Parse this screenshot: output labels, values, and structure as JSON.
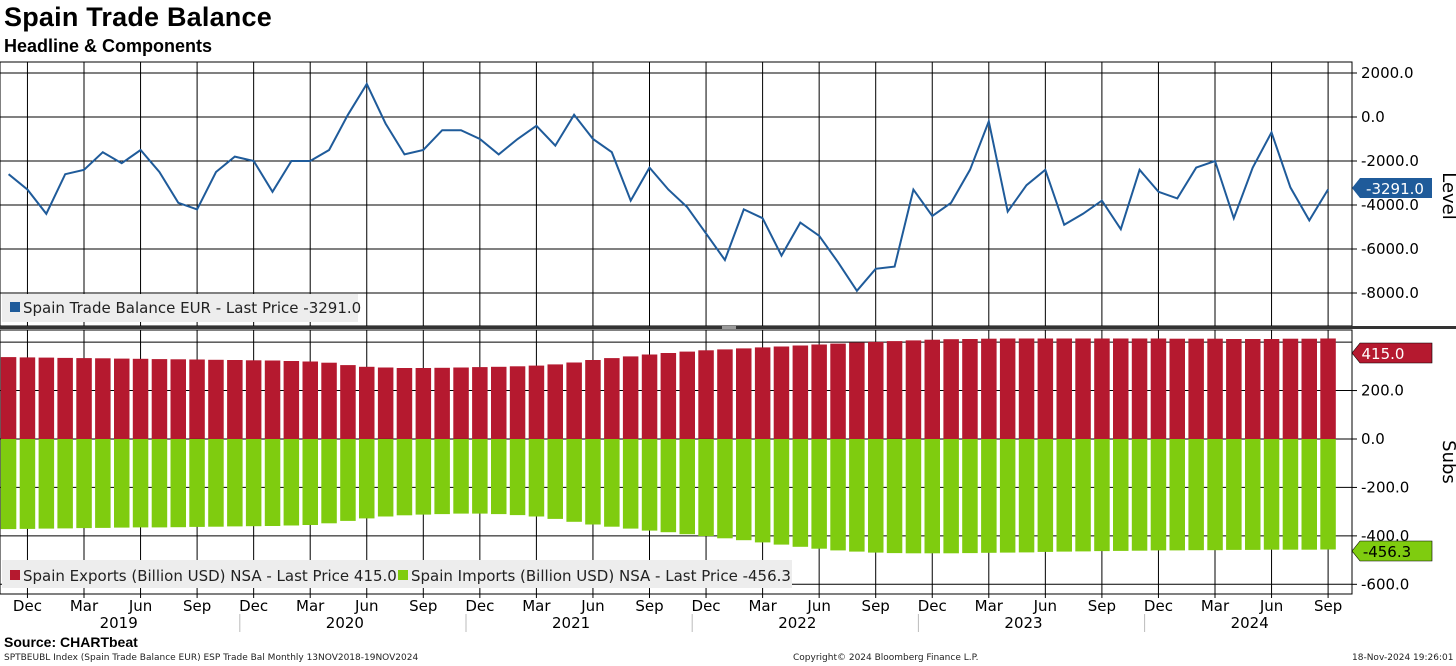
{
  "title": "Spain Trade Balance",
  "subtitle": "Headline & Components",
  "source": "Source: CHARTbeat",
  "footer": {
    "left": "SPTBEUBL Index (Spain Trade Balance EUR) ESP Trade Bal  Monthly 13NOV2018-19NOV2024",
    "center": "Copyright© 2024 Bloomberg Finance L.P.",
    "right": "18-Nov-2024 19:26:01"
  },
  "chart_data": [
    {
      "type": "line",
      "panel": "top",
      "axis_label": "Level",
      "ylim": [
        -9500,
        2500
      ],
      "ticks": [
        2000,
        0,
        -2000,
        -4000,
        -6000,
        -8000
      ],
      "tick_labels": [
        "2000.0",
        "0.0",
        "-2000.0",
        "-4000.0",
        "-6000.0",
        "-8000.0"
      ],
      "color": "#1f5b9a",
      "legend": "Spain Trade Balance EUR - Last Price -3291.0",
      "last_label": "-3291.0",
      "series_name": "Spain Trade Balance EUR",
      "values": [
        -2600,
        -3300,
        -4400,
        -2600,
        -2400,
        -1600,
        -2100,
        -1500,
        -2500,
        -3900,
        -4200,
        -2500,
        -1800,
        -2000,
        -3400,
        -2000,
        -2000,
        -1500,
        100,
        1500,
        -300,
        -1700,
        -1500,
        -600,
        -600,
        -1000,
        -1700,
        -1000,
        -400,
        -1300,
        100,
        -1000,
        -1600,
        -3800,
        -2300,
        -3300,
        -4100,
        -5300,
        -6500,
        -4200,
        -4600,
        -6300,
        -4800,
        -5400,
        -6600,
        -7900,
        -6900,
        -6800,
        -3300,
        -4500,
        -3900,
        -2400,
        -200,
        -4300,
        -3100,
        -2400,
        -4900,
        -4400,
        -3800,
        -5100,
        -2400,
        -3400,
        -3700,
        -2300,
        -2000,
        -4600,
        -2300,
        -700,
        -3200,
        -4700,
        -3291
      ]
    },
    {
      "type": "bar",
      "panel": "bottom",
      "axis_label": "Subs",
      "ylim": [
        -640,
        450
      ],
      "ticks": [
        200,
        0,
        -200,
        -400,
        -600
      ],
      "tick_labels": [
        "200.0",
        "0.0",
        "-200.0",
        "-400.0",
        "-600.0"
      ],
      "series": [
        {
          "name": "Spain Exports (Billion USD) NSA",
          "color": "#b5192f",
          "legend": "Spain Exports (Billion USD) NSA - Last Price 415.0",
          "last_label": "415.0",
          "values": [
            338,
            337,
            336,
            335,
            334,
            333,
            332,
            331,
            330,
            329,
            328,
            327,
            326,
            325,
            324,
            322,
            320,
            315,
            305,
            298,
            295,
            293,
            293,
            294,
            295,
            297,
            298,
            300,
            303,
            308,
            316,
            326,
            334,
            341,
            349,
            355,
            361,
            366,
            370,
            374,
            378,
            382,
            386,
            390,
            394,
            398,
            401,
            404,
            407,
            410,
            412,
            413,
            414,
            415,
            415,
            415,
            415,
            415,
            415,
            415,
            415,
            415,
            414,
            414,
            414,
            413,
            413,
            413,
            414,
            414,
            415
          ]
        },
        {
          "name": "Spain Imports (Billion USD) NSA",
          "color": "#7fcc0f",
          "legend": "Spain Imports (Billion USD) NSA - Last Price -456.3",
          "last_label": "-456.3",
          "values": [
            -372,
            -371,
            -370,
            -369,
            -368,
            -367,
            -366,
            -365,
            -365,
            -364,
            -363,
            -362,
            -361,
            -360,
            -359,
            -357,
            -355,
            -348,
            -338,
            -328,
            -320,
            -315,
            -312,
            -310,
            -308,
            -308,
            -310,
            -314,
            -320,
            -330,
            -342,
            -353,
            -362,
            -370,
            -378,
            -385,
            -393,
            -401,
            -410,
            -418,
            -427,
            -436,
            -445,
            -453,
            -460,
            -465,
            -469,
            -471,
            -472,
            -472,
            -472,
            -471,
            -470,
            -469,
            -468,
            -466,
            -465,
            -464,
            -463,
            -462,
            -461,
            -460,
            -460,
            -459,
            -459,
            -458,
            -458,
            -457,
            -457,
            -457,
            -456.3
          ]
        }
      ]
    }
  ],
  "x_axis": {
    "month_labels": [
      "Dec",
      "Mar",
      "Jun",
      "Sep",
      "Dec",
      "Mar",
      "Jun",
      "Sep",
      "Dec",
      "Mar",
      "Jun",
      "Sep",
      "Dec",
      "Mar",
      "Jun",
      "Sep",
      "Dec",
      "Mar",
      "Jun",
      "Sep",
      "Dec",
      "Mar",
      "Jun",
      "Sep"
    ],
    "year_labels": [
      "2019",
      "2020",
      "2021",
      "2022",
      "2023",
      "2024"
    ]
  }
}
